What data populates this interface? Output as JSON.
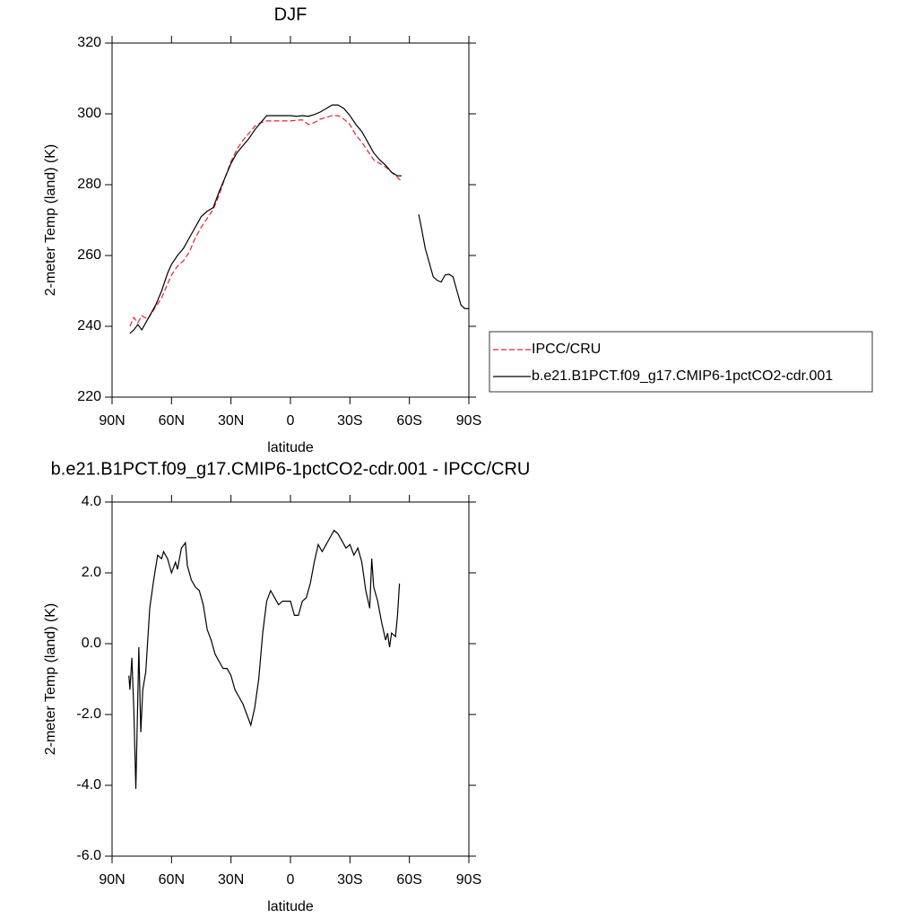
{
  "chart_data": [
    {
      "type": "line",
      "title": "DJF",
      "xlabel": "latitude",
      "ylabel": "2-meter Temp (land) (K)",
      "x": [
        81,
        79,
        77,
        75,
        72,
        68,
        65,
        62,
        60,
        57,
        54,
        51,
        48,
        45,
        42,
        39,
        36,
        33,
        30,
        27,
        24,
        21,
        18,
        15,
        12,
        9,
        6,
        3,
        0,
        -3,
        -6,
        -9,
        -12,
        -15,
        -18,
        -21,
        -24,
        -27,
        -30,
        -33,
        -36,
        -39,
        -42,
        -45,
        -48,
        -51,
        -54,
        -56,
        -60,
        -64.7,
        -66,
        -68,
        -70,
        -72,
        -74,
        -76,
        -78,
        -80,
        -82,
        -84,
        -86,
        -88,
        -90
      ],
      "series": [
        {
          "name": "IPCC/CRU",
          "color": "#e8202a",
          "dash": "dashed",
          "values": [
            240,
            242.5,
            241,
            243,
            242,
            245.5,
            248,
            252,
            254.5,
            257,
            258.5,
            261,
            265,
            268,
            270.5,
            273,
            277,
            282,
            286.5,
            290,
            292.5,
            294.5,
            296.5,
            297.5,
            298,
            298,
            298,
            298,
            298,
            298.2,
            298.3,
            297,
            297.5,
            298.5,
            299,
            299.5,
            299.5,
            298.5,
            297,
            294,
            292,
            289.5,
            287,
            286,
            285,
            283.5,
            282,
            281,
            null,
            null,
            null,
            null,
            null,
            null,
            null,
            null,
            null,
            null,
            null,
            null,
            null,
            null,
            null
          ]
        },
        {
          "name": "b.e21.B1PCT.f09_g17.CMIP6-1pctCO2-cdr.001",
          "color": "#000000",
          "dash": "solid",
          "values": [
            238,
            239,
            240.5,
            239,
            242,
            246,
            250,
            255,
            257.5,
            260,
            262,
            265,
            268,
            271,
            272.5,
            273.5,
            278,
            282,
            286,
            289,
            291,
            293,
            295.5,
            297.5,
            299.5,
            299.5,
            299.5,
            299.5,
            299.5,
            299.3,
            299.5,
            299.3,
            299.8,
            300.5,
            301.5,
            302.5,
            302.5,
            301.5,
            299.5,
            297,
            295,
            292,
            289,
            287,
            285.5,
            283.5,
            282.5,
            282.5,
            null,
            271.6,
            268,
            262,
            258,
            254,
            253,
            252.5,
            254.5,
            254.7,
            254,
            250,
            246,
            245,
            245
          ]
        }
      ],
      "xlim": [
        90,
        -90
      ],
      "xticks": [
        {
          "value": 90,
          "label": "90N"
        },
        {
          "value": 60,
          "label": "60N"
        },
        {
          "value": 30,
          "label": "30N"
        },
        0,
        {
          "value": -30,
          "label": "30S"
        },
        {
          "value": -60,
          "label": "60S"
        },
        {
          "value": -90,
          "label": "90S"
        }
      ],
      "ylim": [
        220,
        320
      ],
      "yticks": [
        220,
        240,
        260,
        280,
        300,
        320
      ],
      "legend": "right"
    },
    {
      "type": "line",
      "title": "b.e21.B1PCT.f09_g17.CMIP6-1pctCO2-cdr.001 - IPCC/CRU",
      "xlabel": "latitude",
      "ylabel": "2-meter Temp (land) (K)",
      "x": [
        81.5,
        81,
        80,
        79,
        78,
        77,
        76.5,
        75.5,
        74.5,
        73,
        71,
        69,
        67,
        65,
        64,
        62,
        61,
        60,
        58,
        57,
        55,
        53,
        52,
        50,
        48,
        46,
        44,
        42,
        40,
        38,
        36,
        34,
        32,
        30,
        28,
        26,
        24,
        22,
        20,
        18,
        16,
        14,
        12,
        10,
        8,
        6,
        4,
        2,
        0,
        -2,
        -4,
        -6,
        -8,
        -10,
        -12,
        -14,
        -16,
        -18,
        -20,
        -22,
        -24,
        -26,
        -28,
        -30,
        -32,
        -34,
        -36,
        -38,
        -40,
        -41,
        -42,
        -44,
        -46,
        -48,
        -49,
        -50,
        -51,
        -53,
        -54,
        -55
      ],
      "values": [
        -0.9,
        -1.3,
        -0.4,
        -1.9,
        -4.1,
        -1.5,
        -0.1,
        -2.5,
        -1.3,
        -0.8,
        1.0,
        1.8,
        2.5,
        2.4,
        2.6,
        2.4,
        2.2,
        2.0,
        2.3,
        2.1,
        2.7,
        2.85,
        2.2,
        1.8,
        1.6,
        1.5,
        1.1,
        0.4,
        0.1,
        -0.3,
        -0.5,
        -0.7,
        -0.7,
        -0.9,
        -1.3,
        -1.5,
        -1.7,
        -2.0,
        -2.3,
        -1.8,
        -1.0,
        0.3,
        1.2,
        1.5,
        1.3,
        1.1,
        1.2,
        1.2,
        1.2,
        0.8,
        0.8,
        1.2,
        1.3,
        1.7,
        2.3,
        2.8,
        2.6,
        2.8,
        3.0,
        3.2,
        3.1,
        2.9,
        2.7,
        2.8,
        2.5,
        2.7,
        2.3,
        1.5,
        1.0,
        2.4,
        1.6,
        1.2,
        0.6,
        0.1,
        0.3,
        -0.1,
        0.3,
        0.2,
        0.8,
        1.7
      ],
      "color": "#000000",
      "xlim": [
        90,
        -90
      ],
      "xticks": [
        {
          "value": 90,
          "label": "90N"
        },
        {
          "value": 60,
          "label": "60N"
        },
        {
          "value": 30,
          "label": "30N"
        },
        0,
        {
          "value": -30,
          "label": "30S"
        },
        {
          "value": -60,
          "label": "60S"
        },
        {
          "value": -90,
          "label": "90S"
        }
      ],
      "ylim": [
        -6,
        4
      ],
      "yticks": [
        {
          "value": -6,
          "label": "-6.0"
        },
        {
          "value": -4,
          "label": "-4.0"
        },
        {
          "value": -2,
          "label": "-2.0"
        },
        {
          "value": 0,
          "label": "0.0"
        },
        {
          "value": 2,
          "label": "2.0"
        },
        {
          "value": 4,
          "label": "4.0"
        }
      ]
    }
  ]
}
